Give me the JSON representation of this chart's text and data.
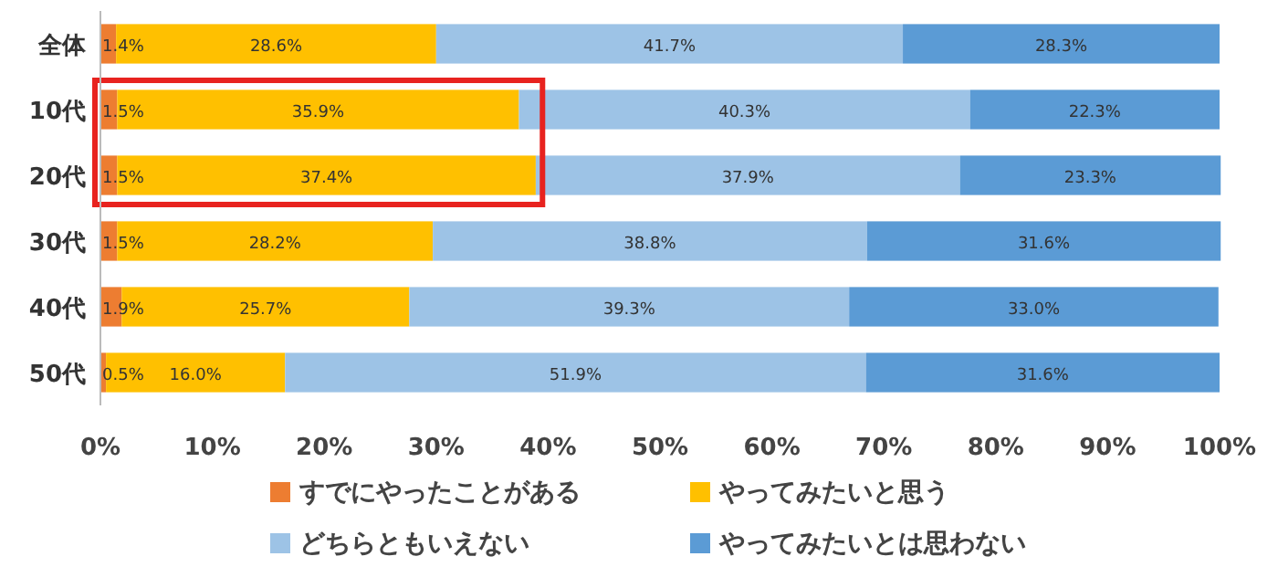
{
  "chart_data": {
    "type": "bar",
    "orientation": "horizontal",
    "stacked": true,
    "categories": [
      "全体",
      "10代",
      "20代",
      "30代",
      "40代",
      "50代"
    ],
    "series": [
      {
        "name": "すでにやったことがある",
        "color": "#ed7d31",
        "values": [
          1.4,
          1.5,
          1.5,
          1.5,
          1.9,
          0.5
        ],
        "value_labels": [
          "1.4%",
          "1.5%",
          "1.5%",
          "1.5%",
          "1.9%",
          "0.5%"
        ]
      },
      {
        "name": "やってみたいと思う",
        "color": "#ffc000",
        "values": [
          28.6,
          35.9,
          37.4,
          28.2,
          25.7,
          16.0
        ],
        "value_labels": [
          "28.6%",
          "35.9%",
          "37.4%",
          "28.2%",
          "25.7%",
          "16.0%"
        ]
      },
      {
        "name": "どちらともいえない",
        "color": "#9dc3e6",
        "values": [
          41.7,
          40.3,
          37.9,
          38.8,
          39.3,
          51.9
        ],
        "value_labels": [
          "41.7%",
          "40.3%",
          "37.9%",
          "38.8%",
          "39.3%",
          "51.9%"
        ]
      },
      {
        "name": "やってみたいとは思わない",
        "color": "#5b9bd5",
        "values": [
          28.3,
          22.3,
          23.3,
          31.6,
          33.0,
          31.6
        ],
        "value_labels": [
          "28.3%",
          "22.3%",
          "23.3%",
          "31.6%",
          "33.0%",
          "31.6%"
        ]
      }
    ],
    "xlim": [
      0,
      100
    ],
    "xticks": [
      {
        "value": 0,
        "label": "0%"
      },
      {
        "value": 10,
        "label": "10%"
      },
      {
        "value": 20,
        "label": "20%"
      },
      {
        "value": 30,
        "label": "30%"
      },
      {
        "value": 40,
        "label": "40%"
      },
      {
        "value": 50,
        "label": "50%"
      },
      {
        "value": 60,
        "label": "60%"
      },
      {
        "value": 70,
        "label": "70%"
      },
      {
        "value": 80,
        "label": "80%"
      },
      {
        "value": 90,
        "label": "90%"
      },
      {
        "value": 100,
        "label": "100%"
      }
    ],
    "legend": "bottom",
    "grid": false
  }
}
